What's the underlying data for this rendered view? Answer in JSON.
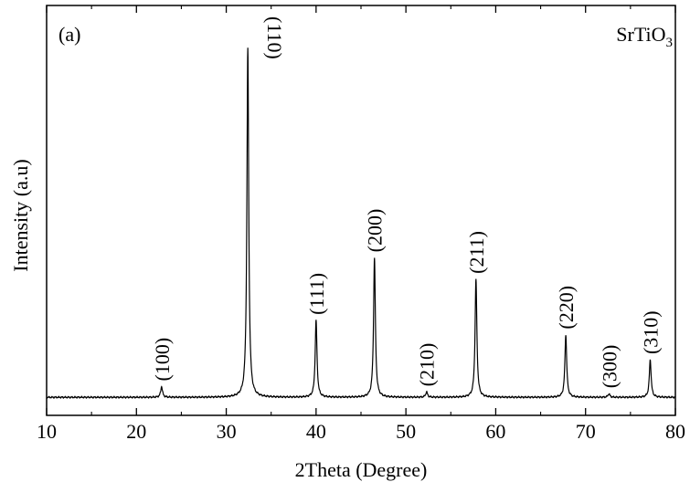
{
  "chart_data": {
    "type": "line",
    "panel_label": "(a)",
    "sample": {
      "base": "SrTiO",
      "subscript": "3"
    },
    "xlabel": "2Theta (Degree)",
    "ylabel": "Intensity (a.u)",
    "xlim": [
      10,
      80
    ],
    "x_ticks": [
      "10",
      "20",
      "30",
      "40",
      "50",
      "60",
      "70",
      "80"
    ],
    "y_ticks_labeled": false,
    "grid": false,
    "baseline": 0.025,
    "series": [
      {
        "peaks": [
          {
            "label": "(100)",
            "x": 22.8,
            "intensity": 0.055
          },
          {
            "label": "(110)",
            "x": 32.4,
            "intensity": 1.0
          },
          {
            "label": "(111)",
            "x": 40.0,
            "intensity": 0.24
          },
          {
            "label": "(200)",
            "x": 46.5,
            "intensity": 0.415
          },
          {
            "label": "(210)",
            "x": 52.3,
            "intensity": 0.04
          },
          {
            "label": "(211)",
            "x": 57.8,
            "intensity": 0.355
          },
          {
            "label": "(220)",
            "x": 67.8,
            "intensity": 0.2
          },
          {
            "label": "(300)",
            "x": 72.6,
            "intensity": 0.035
          },
          {
            "label": "(310)",
            "x": 77.2,
            "intensity": 0.13
          }
        ]
      }
    ]
  }
}
